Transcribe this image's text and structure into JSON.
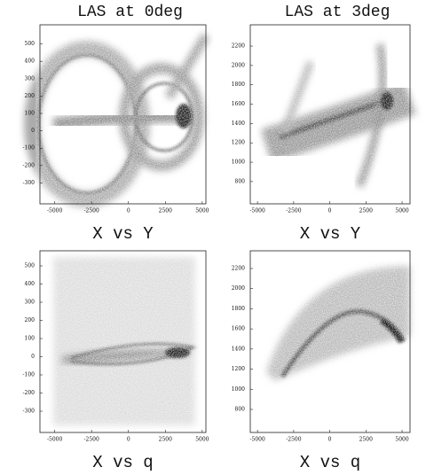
{
  "chart_data": [
    {
      "type": "density",
      "title": "LAS at 0deg",
      "xlabel": "X vs Y",
      "xlim": [
        -6000,
        5250
      ],
      "xticks": [
        -5000,
        -2500,
        0,
        2500,
        5000
      ],
      "ylim": [
        -420,
        610
      ],
      "yticks": [
        500,
        400,
        300,
        200,
        100,
        0,
        -100,
        -200,
        -300
      ]
    },
    {
      "type": "density",
      "title": "LAS at 3deg",
      "xlabel": "X vs Y",
      "xlim": [
        -5500,
        5550
      ],
      "xticks": [
        -5000,
        -2500,
        0,
        2500,
        5000
      ],
      "ylim": [
        570,
        2420
      ],
      "yticks": [
        800,
        1000,
        1200,
        1400,
        1600,
        1800,
        2000,
        2200
      ]
    },
    {
      "type": "density",
      "xlabel": "X vs q",
      "xlim": [
        -6000,
        5250
      ],
      "xticks": [
        -5000,
        -2500,
        0,
        2500,
        5000
      ],
      "ylim": [
        -417,
        583
      ],
      "yticks": [
        500,
        400,
        300,
        200,
        100,
        0,
        -100,
        -200,
        -300
      ]
    },
    {
      "type": "density",
      "xlabel": "X vs q",
      "xlim": [
        -5500,
        5550
      ],
      "xticks": [
        -5000,
        -2500,
        0,
        2500,
        5000
      ],
      "ylim": [
        571,
        2376
      ],
      "yticks": [
        800,
        1000,
        1200,
        1400,
        1600,
        1800,
        2000,
        2200
      ]
    }
  ]
}
